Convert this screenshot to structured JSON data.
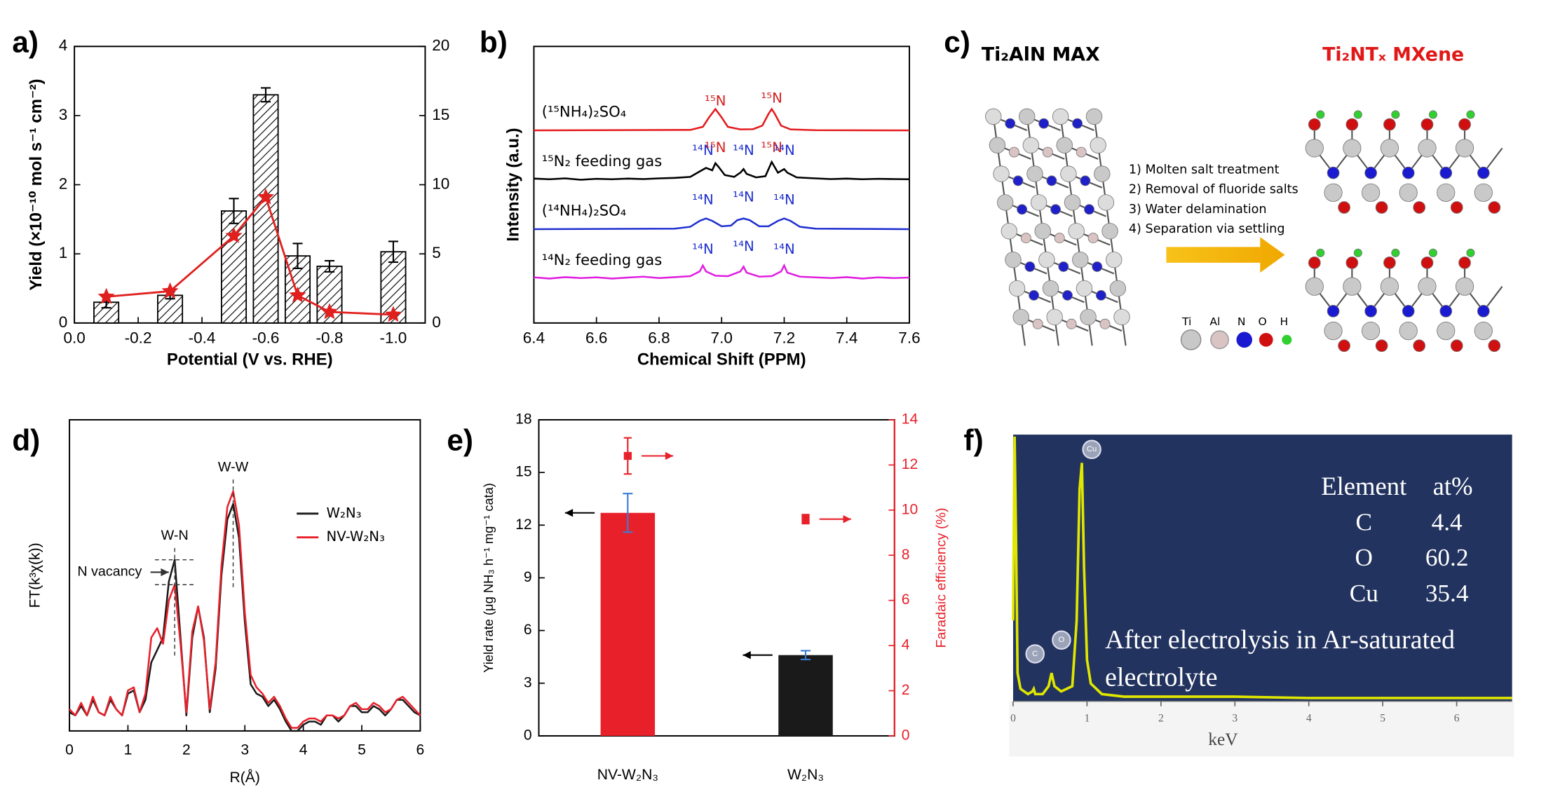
{
  "chart_data": [
    {
      "type": "bar",
      "label": "a)",
      "xlabel": "Potential (V vs. RHE)",
      "ylabel": "Yield (×10⁻¹⁰ mol s⁻¹ cm⁻²)",
      "xlim": [
        0,
        -1.1
      ],
      "xticks": [
        {
          "value": 0,
          "label": "0.0"
        },
        -0.2,
        -0.4,
        -0.6,
        -0.8,
        {
          "value": -1,
          "label": "-1.0"
        }
      ],
      "ylim": [
        0,
        4
      ],
      "yticks": [
        0,
        1,
        2,
        3,
        4
      ],
      "y2lim": [
        0,
        20
      ],
      "y2ticks": [
        0,
        5,
        10,
        15,
        20
      ],
      "x": [
        -0.1,
        -0.3,
        -0.5,
        -0.6,
        -0.7,
        -0.8,
        -1.0
      ],
      "series": [
        {
          "type": "bar",
          "color": "#000000",
          "hatch": true,
          "values": [
            0.3,
            0.4,
            1.62,
            3.3,
            0.97,
            0.82,
            1.03
          ],
          "errors": [
            0.08,
            0.05,
            0.18,
            0.1,
            0.18,
            0.08,
            0.15
          ]
        },
        {
          "type": "line",
          "axis": "y2",
          "marker": "star",
          "color": "#e0201e",
          "values": [
            1.9,
            2.3,
            6.3,
            9.1,
            2.0,
            0.8,
            0.6
          ]
        }
      ]
    },
    {
      "type": "line",
      "label": "b)",
      "stacked": true,
      "xlabel": "Chemical Shift (PPM)",
      "ylabel": "Intensity (a.u.)",
      "xlim": [
        6.4,
        7.6
      ],
      "xticks": [
        6.4,
        6.6,
        6.8,
        {
          "value": 7,
          "label": "7.0"
        },
        7.2,
        7.4,
        7.6
      ],
      "series": [
        {
          "name": "(¹⁵NH₄)₂SO₄",
          "color": "#e41a1c",
          "x": [
            6.4,
            6.9,
            6.94,
            6.96,
            6.98,
            7.0,
            7.02,
            7.06,
            7.1,
            7.13,
            7.15,
            7.16,
            7.17,
            7.19,
            7.22,
            7.3,
            7.6
          ],
          "values": [
            0,
            0.02,
            0.15,
            0.55,
            0.9,
            0.55,
            0.15,
            0.04,
            0.05,
            0.2,
            0.7,
            0.9,
            0.7,
            0.2,
            0.04,
            0.01,
            0
          ],
          "peaks": [
            {
              "x": 6.98,
              "text": "¹⁵N",
              "color": "#d42020"
            },
            {
              "x": 7.16,
              "text": "¹⁵N",
              "color": "#d42020"
            }
          ]
        },
        {
          "name": "¹⁵N₂ feeding gas",
          "color": "#000000",
          "x": [
            6.4,
            6.45,
            6.5,
            6.55,
            6.6,
            6.65,
            6.7,
            6.75,
            6.8,
            6.85,
            6.9,
            6.93,
            6.95,
            6.97,
            6.98,
            6.99,
            7.01,
            7.04,
            7.06,
            7.07,
            7.08,
            7.11,
            7.14,
            7.16,
            7.18,
            7.2,
            7.21,
            7.24,
            7.3,
            7.35,
            7.4,
            7.45,
            7.5,
            7.55,
            7.6
          ],
          "values": [
            0.05,
            0.02,
            0.06,
            0.0,
            0.04,
            0.02,
            0.05,
            0.03,
            0.06,
            0.08,
            0.12,
            0.35,
            0.5,
            0.4,
            0.7,
            0.55,
            0.2,
            0.12,
            0.3,
            0.45,
            0.25,
            0.1,
            0.15,
            0.75,
            0.3,
            0.45,
            0.3,
            0.1,
            0.06,
            0.03,
            0.05,
            0.02,
            0.04,
            0.03,
            0.02
          ],
          "peaks": [
            {
              "x": 6.94,
              "text": "¹⁴N",
              "color": "#1f2fd0"
            },
            {
              "x": 6.98,
              "text": "¹⁵N",
              "color": "#d42020"
            },
            {
              "x": 7.07,
              "text": "¹⁴N",
              "color": "#1f2fd0"
            },
            {
              "x": 7.16,
              "text": "¹⁵N",
              "color": "#d42020"
            },
            {
              "x": 7.2,
              "text": "¹⁴N",
              "color": "#1f2fd0"
            }
          ]
        },
        {
          "name": "(¹⁴NH₄)₂SO₄",
          "color": "#1f2fd0",
          "x": [
            6.4,
            6.85,
            6.9,
            6.93,
            6.95,
            6.97,
            7.0,
            7.03,
            7.05,
            7.07,
            7.09,
            7.12,
            7.15,
            7.18,
            7.2,
            7.22,
            7.25,
            7.3,
            7.6
          ],
          "values": [
            0,
            0.02,
            0.1,
            0.35,
            0.45,
            0.35,
            0.12,
            0.15,
            0.38,
            0.45,
            0.38,
            0.12,
            0.12,
            0.35,
            0.45,
            0.35,
            0.1,
            0.02,
            0
          ],
          "peaks": [
            {
              "x": 6.94,
              "text": "¹⁴N",
              "color": "#1f2fd0"
            },
            {
              "x": 7.07,
              "text": "¹⁴N",
              "color": "#1f2fd0"
            },
            {
              "x": 7.2,
              "text": "¹⁴N",
              "color": "#1f2fd0"
            }
          ]
        },
        {
          "name": "¹⁴N₂ feeding gas",
          "color": "#e020e0",
          "x": [
            6.4,
            6.45,
            6.5,
            6.55,
            6.6,
            6.65,
            6.7,
            6.75,
            6.8,
            6.85,
            6.9,
            6.93,
            6.94,
            6.95,
            6.98,
            7.02,
            7.06,
            7.07,
            7.08,
            7.12,
            7.16,
            7.19,
            7.2,
            7.21,
            7.25,
            7.3,
            7.35,
            7.4,
            7.45,
            7.5,
            7.55,
            7.6
          ],
          "values": [
            0.05,
            0.0,
            0.06,
            0.02,
            0.05,
            0.0,
            0.04,
            0.08,
            0.02,
            0.06,
            0.1,
            0.3,
            0.55,
            0.3,
            0.12,
            0.1,
            0.3,
            0.5,
            0.25,
            0.08,
            0.1,
            0.3,
            0.55,
            0.25,
            0.08,
            0.05,
            0.02,
            0.06,
            0.0,
            0.05,
            0.02,
            0.04
          ],
          "peaks": [
            {
              "x": 6.94,
              "text": "¹⁴N",
              "color": "#1f2fd0"
            },
            {
              "x": 7.07,
              "text": "¹⁴N",
              "color": "#1f2fd0"
            },
            {
              "x": 7.2,
              "text": "¹⁴N",
              "color": "#1f2fd0"
            }
          ]
        }
      ]
    },
    {
      "type": "line",
      "label": "d)",
      "legend": "upper right",
      "xlabel": "R(Å)",
      "ylabel": "FT(k³χ(k))",
      "xlim": [
        0,
        6
      ],
      "xticks": [
        0,
        1,
        2,
        3,
        4,
        5,
        6
      ],
      "ylim": [
        0,
        1
      ],
      "x": [
        0,
        0.1,
        0.2,
        0.3,
        0.4,
        0.5,
        0.6,
        0.7,
        0.8,
        0.9,
        1.0,
        1.1,
        1.2,
        1.3,
        1.4,
        1.5,
        1.6,
        1.7,
        1.8,
        1.9,
        2.0,
        2.1,
        2.2,
        2.3,
        2.4,
        2.5,
        2.6,
        2.7,
        2.8,
        2.9,
        3.0,
        3.1,
        3.2,
        3.3,
        3.4,
        3.5,
        3.6,
        3.7,
        3.8,
        3.9,
        4.0,
        4.1,
        4.2,
        4.3,
        4.4,
        4.5,
        4.6,
        4.7,
        4.8,
        4.9,
        5.0,
        5.1,
        5.2,
        5.3,
        5.4,
        5.5,
        5.6,
        5.7,
        5.8,
        5.9,
        6.0
      ],
      "series": [
        {
          "name": "W₂N₃",
          "color": "#1a1a1a",
          "values": [
            0.06,
            0.05,
            0.08,
            0.05,
            0.1,
            0.06,
            0.05,
            0.1,
            0.07,
            0.05,
            0.12,
            0.13,
            0.06,
            0.1,
            0.22,
            0.26,
            0.3,
            0.48,
            0.55,
            0.3,
            0.05,
            0.3,
            0.4,
            0.3,
            0.06,
            0.2,
            0.5,
            0.68,
            0.73,
            0.62,
            0.35,
            0.15,
            0.12,
            0.11,
            0.08,
            0.1,
            0.07,
            0.03,
            0.0,
            0.0,
            0.02,
            0.03,
            0.03,
            0.02,
            0.05,
            0.05,
            0.03,
            0.05,
            0.08,
            0.08,
            0.06,
            0.06,
            0.08,
            0.07,
            0.05,
            0.07,
            0.1,
            0.1,
            0.08,
            0.06,
            0.05
          ]
        },
        {
          "name": "NV-W₂N₃",
          "color": "#e8202a",
          "values": [
            0.07,
            0.05,
            0.09,
            0.05,
            0.11,
            0.06,
            0.05,
            0.11,
            0.07,
            0.05,
            0.13,
            0.14,
            0.06,
            0.12,
            0.3,
            0.33,
            0.28,
            0.42,
            0.47,
            0.28,
            0.06,
            0.32,
            0.4,
            0.29,
            0.07,
            0.22,
            0.53,
            0.72,
            0.77,
            0.66,
            0.38,
            0.18,
            0.14,
            0.12,
            0.09,
            0.11,
            0.08,
            0.04,
            0.01,
            0.01,
            0.03,
            0.04,
            0.04,
            0.03,
            0.05,
            0.05,
            0.04,
            0.05,
            0.08,
            0.09,
            0.07,
            0.07,
            0.09,
            0.08,
            0.06,
            0.07,
            0.1,
            0.11,
            0.09,
            0.07,
            0.05
          ]
        }
      ],
      "annotations": [
        {
          "text": "W-N",
          "x": 1.8
        },
        {
          "text": "W-W",
          "x": 2.8
        },
        {
          "text": "N vacancy"
        }
      ]
    },
    {
      "type": "bar",
      "label": "e)",
      "categories": [
        "NV-W₂N₃",
        "W₂N₃"
      ],
      "ylabel": "Yield rate (μg NH₃ h⁻¹ mg⁻¹ cata)",
      "y2label": "Faradaic efficiency (%)",
      "ylim": [
        0,
        18
      ],
      "yticks": [
        0,
        3,
        6,
        9,
        12,
        15,
        18
      ],
      "y2lim": [
        0,
        14
      ],
      "y2ticks": [
        0,
        2,
        4,
        6,
        8,
        10,
        12,
        14
      ],
      "y2color": "#e8202a",
      "series": [
        {
          "type": "bar",
          "colors": [
            "#e8202a",
            "#1a1a1a"
          ],
          "values": [
            12.7,
            4.6
          ],
          "errors": [
            1.1,
            0.25
          ],
          "error_color": "#3a7bd5"
        },
        {
          "type": "scatter",
          "axis": "y2",
          "marker": "square",
          "color": "#e8202a",
          "values": [
            12.4,
            9.6
          ],
          "errors": [
            0.8,
            0.2
          ]
        }
      ]
    },
    {
      "type": "line",
      "label": "f)",
      "background": "#22335f",
      "xlabel": "keV",
      "xlim": [
        0,
        6.75
      ],
      "xticks": [
        0,
        1,
        2,
        3,
        4,
        5,
        6
      ],
      "ylim": [
        0,
        1
      ],
      "x": [
        0,
        0.02,
        0.04,
        0.06,
        0.1,
        0.2,
        0.26,
        0.28,
        0.3,
        0.4,
        0.48,
        0.52,
        0.56,
        0.65,
        0.8,
        0.86,
        0.9,
        0.93,
        0.96,
        1.0,
        1.05,
        1.2,
        1.5,
        2,
        3,
        4,
        5,
        6,
        6.75
      ],
      "series": [
        {
          "color": "#dfe600",
          "values": [
            0.3,
            1.0,
            0.6,
            0.1,
            0.04,
            0.02,
            0.03,
            0.04,
            0.02,
            0.02,
            0.05,
            0.1,
            0.05,
            0.03,
            0.05,
            0.3,
            0.8,
            0.9,
            0.5,
            0.15,
            0.06,
            0.02,
            0.01,
            0.01,
            0.01,
            0.005,
            0.005,
            0.005,
            0.005
          ]
        }
      ],
      "peak_labels": [
        {
          "x": 0.27,
          "text": "C"
        },
        {
          "x": 0.52,
          "text": "O"
        },
        {
          "x": 0.93,
          "text": "Cu"
        }
      ],
      "table": {
        "columns": [
          "Element",
          "at%"
        ],
        "rows": [
          [
            "C",
            4.4
          ],
          [
            "O",
            60.2
          ],
          [
            "Cu",
            35.4
          ]
        ]
      },
      "note": [
        "After electrolysis in Ar-saturated",
        "electrolyte"
      ]
    }
  ],
  "diagram": {
    "label": "c)",
    "left_title": "Ti₂AlN MAX",
    "right_title": "Ti₂NTₓ MXene",
    "steps": [
      "1) Molten salt treatment",
      "2) Removal of fluoride salts",
      "3) Water delamination",
      "4) Separation via settling"
    ],
    "legend": [
      "Ti",
      "Al",
      "N",
      "O",
      "H"
    ]
  }
}
